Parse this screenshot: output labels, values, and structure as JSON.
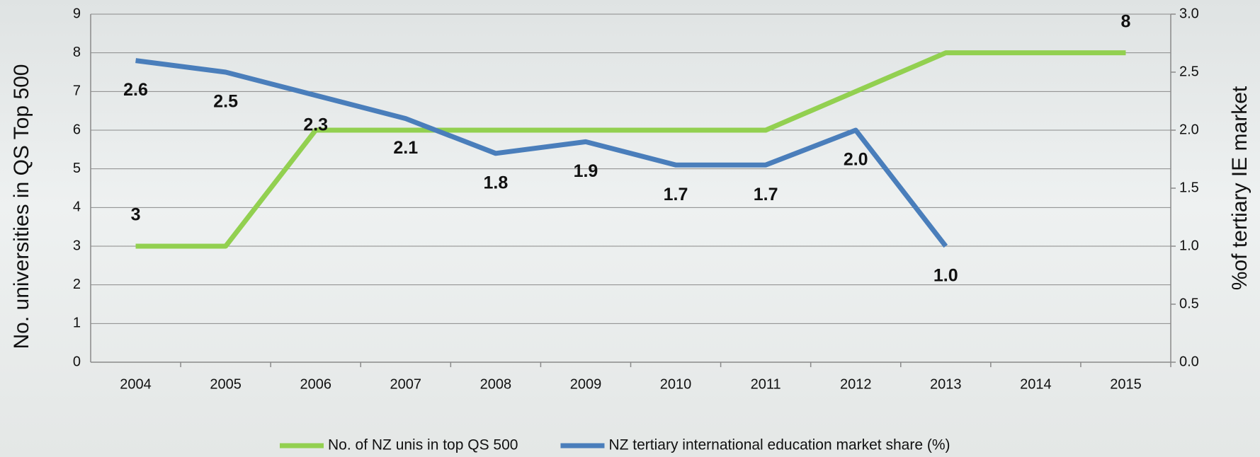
{
  "chart_data": {
    "type": "line",
    "categories": [
      "2004",
      "2005",
      "2006",
      "2007",
      "2008",
      "2009",
      "2010",
      "2011",
      "2012",
      "2013",
      "2014",
      "2015"
    ],
    "y_label": "No. universities in QS Top 500",
    "y2_label": "%of tertiary IE market",
    "ylim": [
      0,
      9
    ],
    "yticks": [
      0,
      1,
      2,
      3,
      4,
      5,
      6,
      7,
      8,
      9
    ],
    "y2lim": [
      0,
      3
    ],
    "y2ticks": [
      {
        "value": 0,
        "label": "0.0"
      },
      0.5,
      {
        "value": 1,
        "label": "1.0"
      },
      1.5,
      {
        "value": 2,
        "label": "2.0"
      },
      2.5,
      {
        "value": 3,
        "label": "3.0"
      }
    ],
    "grid": true,
    "legend": "bottom",
    "series": [
      {
        "name": "No. of NZ unis in top QS 500",
        "color": "#92d050",
        "values": [
          3,
          3,
          6,
          6,
          6,
          6,
          6,
          6,
          7,
          8,
          8,
          8
        ],
        "value_labels": [
          "3",
          null,
          null,
          null,
          null,
          null,
          null,
          null,
          null,
          null,
          null,
          "8"
        ]
      },
      {
        "name": "NZ tertiary international education market share (%)",
        "color": "#4a7ebb",
        "axis": "y2",
        "values": [
          2.6,
          2.5,
          2.3,
          2.1,
          1.8,
          1.9,
          1.7,
          1.7,
          2.0,
          1.0,
          null,
          null
        ],
        "value_labels": [
          "2.6",
          "2.5",
          "2.3",
          "2.1",
          "1.8",
          "1.9",
          "1.7",
          "1.7",
          "2.0",
          "1.0",
          null,
          null
        ]
      }
    ]
  }
}
